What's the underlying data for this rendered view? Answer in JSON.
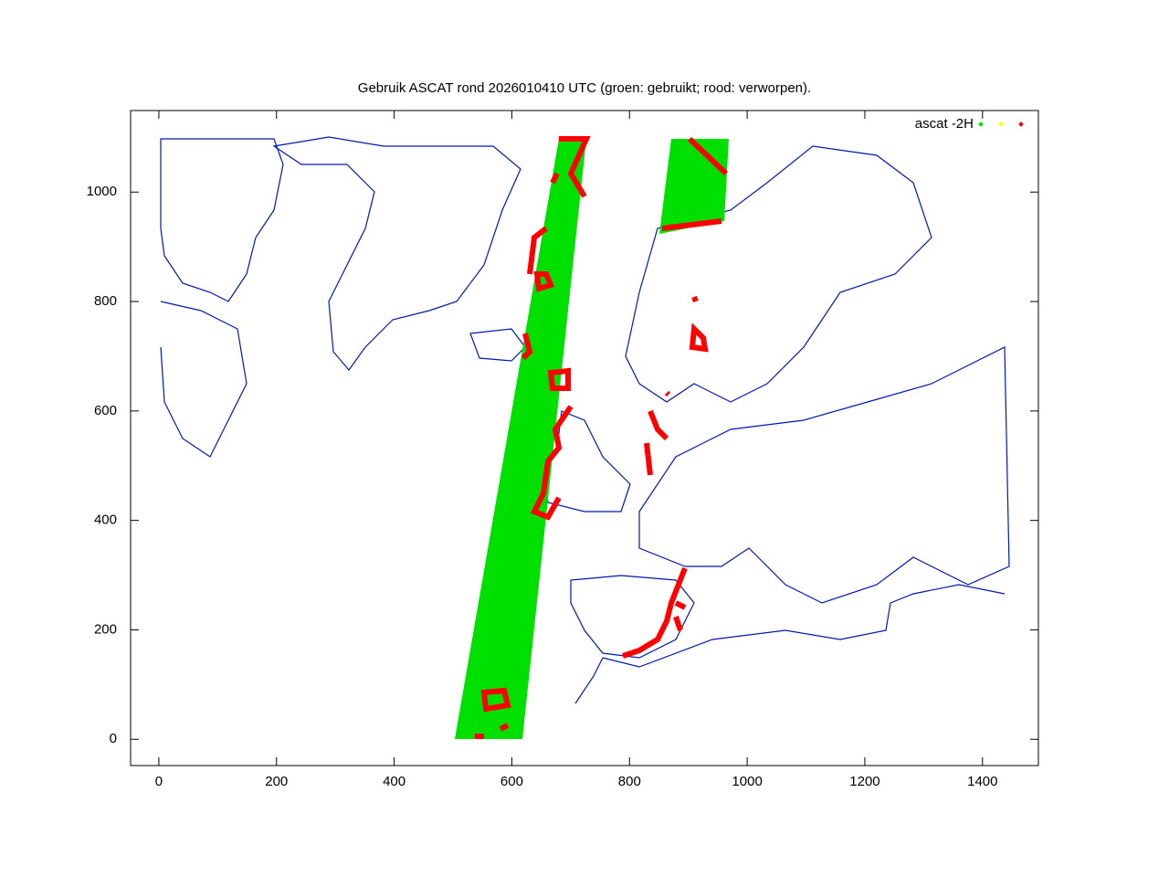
{
  "chart_data": {
    "type": "scatter",
    "title": "Gebruik ASCAT rond 2026010410 UTC (groen: gebruikt; rood: verworpen).",
    "xlim": [
      -48,
      1495
    ],
    "ylim": [
      -48,
      1149
    ],
    "xticks": [
      0,
      200,
      400,
      600,
      800,
      1000,
      1200,
      1400
    ],
    "yticks": [
      0,
      200,
      400,
      600,
      800,
      1000
    ],
    "legend": "top-right",
    "series": [
      {
        "name": "ascat -2H",
        "color": "#00e000"
      },
      {
        "color": "#ffff00"
      },
      {
        "color": "#ff0000"
      }
    ]
  }
}
